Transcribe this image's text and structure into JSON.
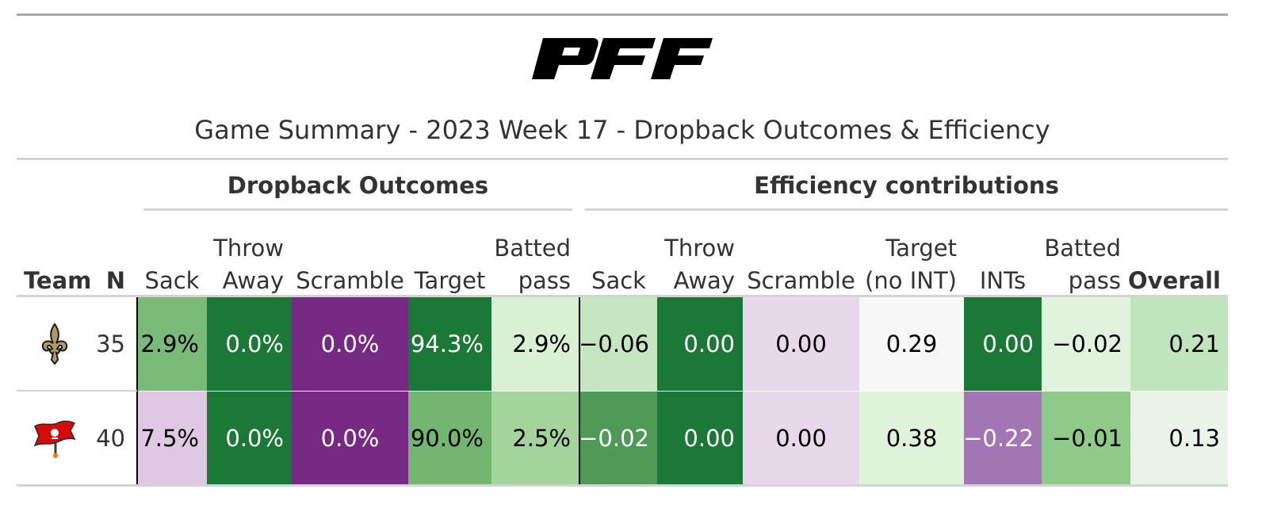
{
  "chart_data": {
    "type": "table",
    "title": "Game Summary - 2023 Week 17 - Dropback Outcomes & Efficiency",
    "spanners": [
      "Dropback Outcomes",
      "Efficiency contributions"
    ],
    "columns": [
      "Team",
      "N",
      "Sack",
      "Throw Away",
      "Scramble",
      "Target",
      "Batted pass",
      "Sack",
      "Throw Away",
      "Scramble",
      "Target (no INT)",
      "INTs",
      "Batted pass",
      "Overall"
    ],
    "rows": [
      {
        "team_logo": "saints-fleur-de-lis-logo",
        "n": "35",
        "outcomes": [
          "2.9%",
          "0.0%",
          "0.0%",
          "94.3%",
          "2.9%"
        ],
        "efficiency": [
          "−0.06",
          "0.00",
          "0.00",
          "0.29",
          "0.00",
          "−0.02",
          "0.21"
        ]
      },
      {
        "team_logo": "buccaneers-flag-logo",
        "n": "40",
        "outcomes": [
          "7.5%",
          "0.0%",
          "0.0%",
          "90.0%",
          "2.5%"
        ],
        "efficiency": [
          "−0.02",
          "0.00",
          "0.00",
          "0.38",
          "−0.22",
          "−0.01",
          "0.13"
        ]
      }
    ]
  },
  "header": {
    "logo_text": "PFF",
    "title": "Game Summary - 2023 Week 17 - Dropback Outcomes & Efficiency",
    "spanner_outcomes": "Dropback Outcomes",
    "spanner_efficiency": "Efficiency contributions"
  },
  "labels": {
    "team": "Team",
    "n": "N",
    "o_sack": "Sack",
    "o_throw_1": "Throw",
    "o_throw_2": "Away",
    "o_scramble": "Scramble",
    "o_target": "Target",
    "o_batted_1": "Batted",
    "o_batted_2": "pass",
    "e_sack": "Sack",
    "e_throw_1": "Throw",
    "e_throw_2": "Away",
    "e_scramble": "Scramble",
    "e_target_1": "Target",
    "e_target_2": "(no INT)",
    "e_ints": "INTs",
    "e_batted_1": "Batted",
    "e_batted_2": "pass",
    "e_overall": "Overall"
  },
  "rows": [
    {
      "n": "35",
      "cells": [
        "2.9%",
        "0.0%",
        "0.0%",
        "94.3%",
        "2.9%",
        "−0.06",
        "0.00",
        "0.00",
        "0.29",
        "0.00",
        "−0.02",
        "0.21"
      ],
      "fills": [
        "#7aba78",
        "#1b7837",
        "#762a83",
        "#1b7837",
        "#d9f0d3",
        "#c5e6c0",
        "#1b7837",
        "#e8d9ea",
        "#f7f7f7",
        "#1b7837",
        "#e1f3dc",
        "#c0e4bb"
      ],
      "text_colors": [
        "#000000",
        "#ffffff",
        "#ffffff",
        "#ffffff",
        "#000000",
        "#000000",
        "#ffffff",
        "#000000",
        "#000000",
        "#ffffff",
        "#000000",
        "#000000"
      ]
    },
    {
      "n": "40",
      "cells": [
        "7.5%",
        "0.0%",
        "0.0%",
        "90.0%",
        "2.5%",
        "−0.02",
        "0.00",
        "0.00",
        "0.38",
        "−0.22",
        "−0.01",
        "0.13"
      ],
      "fills": [
        "#dfc9e2",
        "#1b7837",
        "#762a83",
        "#72b671",
        "#a2d49c",
        "#4f9a56",
        "#1b7837",
        "#e8d9ea",
        "#dff2da",
        "#a276b4",
        "#8fca89",
        "#eaf4e8"
      ],
      "text_colors": [
        "#000000",
        "#ffffff",
        "#ffffff",
        "#000000",
        "#000000",
        "#ffffff",
        "#ffffff",
        "#000000",
        "#000000",
        "#ffffff",
        "#000000",
        "#000000"
      ]
    }
  ]
}
